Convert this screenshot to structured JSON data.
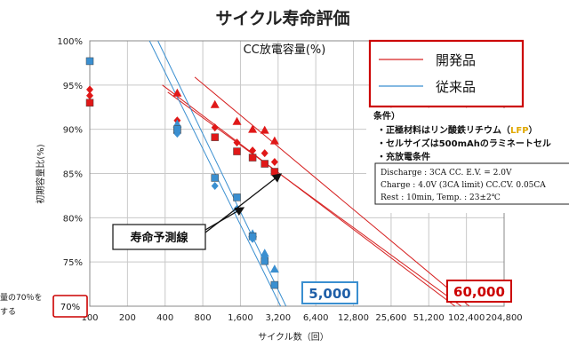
{
  "chart_data": {
    "type": "scatter",
    "title": "サイクル寿命評価",
    "xlabel": "サイクル数（回）",
    "ylabel": "初期容量比(%)",
    "xscale": "log2",
    "xlim": [
      100,
      204800
    ],
    "ylim": [
      70,
      100
    ],
    "x_ticks": [
      "100",
      "200",
      "400",
      "800",
      "1,600",
      "3,200",
      "6,400",
      "12,800",
      "25,600",
      "51,200",
      "102,400",
      "204,800"
    ],
    "x_tick_values": [
      100,
      200,
      400,
      800,
      1600,
      3200,
      6400,
      12800,
      25600,
      51200,
      102400,
      204800
    ],
    "y_ticks": [
      "100%",
      "95%",
      "90%",
      "85%",
      "80%",
      "75%",
      "70%"
    ],
    "y_tick_values": [
      100,
      95,
      90,
      85,
      80,
      75,
      70
    ],
    "grid": true,
    "inner_title": "CC放電容量(%)",
    "legend": {
      "position": "top-right",
      "entries": [
        {
          "name": "開発品",
          "color": "#d62020"
        },
        {
          "name": "従来品",
          "color": "#3a8fd0"
        }
      ]
    },
    "series": [
      {
        "name": "開発品",
        "color": "#e01818",
        "points": [
          {
            "x": 100,
            "y": 94.5,
            "m": "diamond"
          },
          {
            "x": 100,
            "y": 93.8,
            "m": "diamond"
          },
          {
            "x": 100,
            "y": 93.0,
            "m": "square"
          },
          {
            "x": 500,
            "y": 94.1,
            "m": "triangle"
          },
          {
            "x": 500,
            "y": 91.0,
            "m": "diamond"
          },
          {
            "x": 500,
            "y": 90.2,
            "m": "diamond"
          },
          {
            "x": 500,
            "y": 89.9,
            "m": "square"
          },
          {
            "x": 1000,
            "y": 92.8,
            "m": "triangle"
          },
          {
            "x": 1000,
            "y": 90.2,
            "m": "diamond"
          },
          {
            "x": 1000,
            "y": 89.1,
            "m": "square"
          },
          {
            "x": 1500,
            "y": 90.9,
            "m": "triangle"
          },
          {
            "x": 1500,
            "y": 88.5,
            "m": "diamond"
          },
          {
            "x": 1500,
            "y": 87.5,
            "m": "square"
          },
          {
            "x": 2000,
            "y": 90.0,
            "m": "triangle"
          },
          {
            "x": 2000,
            "y": 87.6,
            "m": "diamond"
          },
          {
            "x": 2000,
            "y": 86.8,
            "m": "square"
          },
          {
            "x": 2500,
            "y": 89.9,
            "m": "triangle"
          },
          {
            "x": 2500,
            "y": 87.3,
            "m": "diamond"
          },
          {
            "x": 2500,
            "y": 86.1,
            "m": "square"
          },
          {
            "x": 3000,
            "y": 88.7,
            "m": "triangle"
          },
          {
            "x": 3000,
            "y": 86.3,
            "m": "diamond"
          },
          {
            "x": 3000,
            "y": 85.2,
            "m": "square"
          }
        ]
      },
      {
        "name": "従来品",
        "color": "#3a8fd0",
        "points": [
          {
            "x": 100,
            "y": 97.7,
            "m": "square"
          },
          {
            "x": 500,
            "y": 90.6,
            "m": "triangle"
          },
          {
            "x": 500,
            "y": 90.0,
            "m": "square"
          },
          {
            "x": 500,
            "y": 89.5,
            "m": "diamond"
          },
          {
            "x": 1000,
            "y": 84.5,
            "m": "square"
          },
          {
            "x": 1000,
            "y": 83.6,
            "m": "diamond"
          },
          {
            "x": 1500,
            "y": 82.3,
            "m": "square"
          },
          {
            "x": 1500,
            "y": 81.0,
            "m": "diamond"
          },
          {
            "x": 2000,
            "y": 78.2,
            "m": "triangle"
          },
          {
            "x": 2000,
            "y": 77.9,
            "m": "square"
          },
          {
            "x": 2000,
            "y": 77.6,
            "m": "diamond"
          },
          {
            "x": 2500,
            "y": 76.0,
            "m": "triangle"
          },
          {
            "x": 2500,
            "y": 75.1,
            "m": "square"
          },
          {
            "x": 2500,
            "y": 75.6,
            "m": "diamond"
          },
          {
            "x": 3000,
            "y": 74.2,
            "m": "triangle"
          },
          {
            "x": 3000,
            "y": 72.4,
            "m": "square"
          }
        ]
      }
    ],
    "trend_lines": [
      {
        "series": "開発品",
        "color": "#d62020",
        "from": {
          "x": 420,
          "y": 94.2
        },
        "to": {
          "x": 93000,
          "y": 70
        }
      },
      {
        "series": "開発品",
        "color": "#d62020",
        "from": {
          "x": 380,
          "y": 95.0
        },
        "to": {
          "x": 83000,
          "y": 70
        }
      },
      {
        "series": "開発品",
        "color": "#d62020",
        "from": {
          "x": 690,
          "y": 95.9
        },
        "to": {
          "x": 108000,
          "y": 70
        }
      },
      {
        "series": "従来品",
        "color": "#3a8fd0",
        "from": {
          "x": 300,
          "y": 100
        },
        "to": {
          "x": 3350,
          "y": 70
        }
      },
      {
        "series": "従来品",
        "color": "#3a8fd0",
        "from": {
          "x": 350,
          "y": 100
        },
        "to": {
          "x": 3700,
          "y": 70
        }
      }
    ],
    "annotations": {
      "trend_label": "寿命予測線",
      "threshold_line1": "量の70％を",
      "threshold_line2": "する",
      "threshold_value": "70%",
      "dev_life": "60,000",
      "conv_life": "5,000"
    },
    "conditions": {
      "heading": "条件）",
      "items_prefix": [
        "・正極材料はリン酸鉄リチウム（",
        "・セルサイズは500mAhのラミネートセル",
        "・充放電条件"
      ],
      "lfp": "LFP",
      "lfp_close": "）",
      "box_lines": [
        "Discharge : 3CA CC.  E.V. = 2.0V",
        "Charge : 4.0V (3CA limit) CC.CV.   0.05CA",
        "Rest : 10min,  Temp. : 23±2℃"
      ]
    }
  }
}
